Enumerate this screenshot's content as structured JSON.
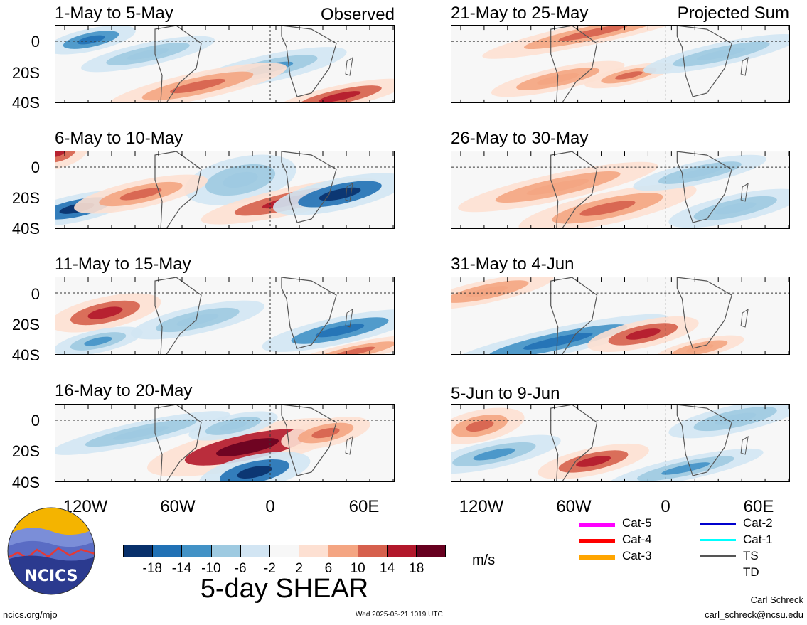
{
  "panels_left": [
    {
      "title": "1-May to 5-May",
      "tag": "Observed"
    },
    {
      "title": "6-May to 10-May",
      "tag": ""
    },
    {
      "title": "11-May to 15-May",
      "tag": ""
    },
    {
      "title": "16-May to 20-May",
      "tag": ""
    }
  ],
  "panels_right": [
    {
      "title": "21-May to 25-May",
      "tag": "Projected Sum"
    },
    {
      "title": "26-May to 30-May",
      "tag": ""
    },
    {
      "title": "31-May to 4-Jun",
      "tag": ""
    },
    {
      "title": "5-Jun to 9-Jun",
      "tag": ""
    }
  ],
  "y_labels": [
    "0",
    "20S",
    "40S"
  ],
  "x_labels": [
    "120W",
    "60W",
    "0",
    "60E"
  ],
  "colorbar": {
    "colors": [
      "#08306b",
      "#2171b5",
      "#4292c6",
      "#9ecae1",
      "#d2e5f3",
      "#f7f7f7",
      "#fde0d2",
      "#f4a582",
      "#d6604d",
      "#b2182b",
      "#67001f"
    ],
    "tick_labels": [
      "-18",
      "-14",
      "-10",
      "-6",
      "-2",
      "2",
      "6",
      "10",
      "14",
      "18"
    ],
    "units": "m/s",
    "title": "5-day SHEAR"
  },
  "legend": [
    {
      "label": "Cat-5",
      "color": "#ff00ff"
    },
    {
      "label": "Cat-4",
      "color": "#ff0000"
    },
    {
      "label": "Cat-3",
      "color": "#ffa500"
    },
    {
      "label": "Cat-2",
      "color": "#0000cd"
    },
    {
      "label": "Cat-1",
      "color": "#00ffff"
    },
    {
      "label": "TS",
      "color": "#555555"
    },
    {
      "label": "TD",
      "color": "#aaaaaa"
    }
  ],
  "logo": {
    "text": "NCICS"
  },
  "footer": {
    "url": "ncics.org/mjo",
    "timestamp": "Wed 2025-05-21 1019 UTC",
    "author": "Carl Schreck",
    "email": "carl_schreck@ncsu.edu"
  }
}
